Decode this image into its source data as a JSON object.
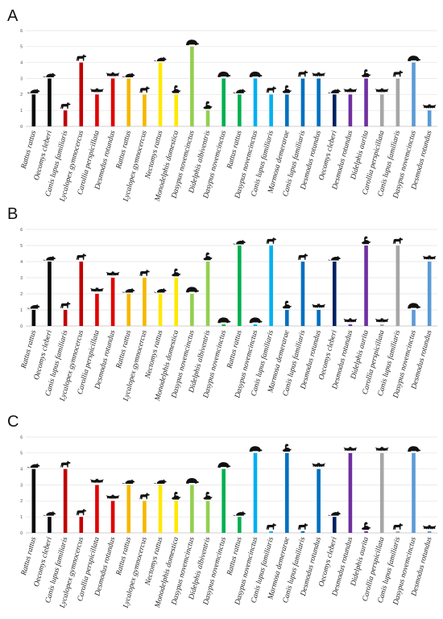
{
  "figure": {
    "panel_labels": [
      "A",
      "B",
      "C"
    ]
  },
  "chart_data": [
    {
      "type": "bar",
      "panel": "A",
      "ylim": [
        0,
        6
      ],
      "yticks": [
        "0",
        "1",
        "2",
        "3",
        "4",
        "5",
        "6"
      ],
      "grid": true,
      "categories": [
        "Rattus rattus",
        "Oecomys cleberi",
        "Canis lupus familiaris",
        "Lycalopex gymnocercus",
        "Carollia perspicillata",
        "Desmodus rotundus",
        "Rattus rattus",
        "Lycalopex gymnocercus",
        "Nectomys rattus",
        "Monodelphis domestica",
        "Dasypus novemcinctus",
        "Didelphis albiventris",
        "Dasypus novemcinctus",
        "Rattus rattus",
        "Dasypus novemcinctus",
        "Canis lupus familiaris",
        "Marmosa demerarae",
        "Canis lupus familiaris",
        "Desmodus rotundus",
        "Oecomys cleberi",
        "Desmodus rotundus",
        "Didelphis aurita",
        "Carollia perspicillata",
        "Canis lupus familiaris",
        "Dasypus novemcinctus",
        "Desmodus rotundus"
      ],
      "values": [
        2,
        3,
        1,
        4,
        2,
        3,
        3,
        2,
        4,
        2,
        5,
        1,
        3,
        2,
        3,
        2,
        2,
        3,
        3,
        2,
        2,
        3,
        2,
        3,
        4,
        1
      ],
      "colors": [
        "#0a0a0a",
        "#0a0a0a",
        "#c00000",
        "#c00000",
        "#e00000",
        "#e00000",
        "#f5b800",
        "#f5b800",
        "#ffe800",
        "#ffe800",
        "#92d050",
        "#92d050",
        "#00b050",
        "#00b050",
        "#00b0f0",
        "#00b0f0",
        "#0070c0",
        "#0070c0",
        "#0070c0",
        "#002060",
        "#7030a0",
        "#7030a0",
        "#a6a6a6",
        "#a6a6a6",
        "#5b9bd5",
        "#5b9bd5"
      ],
      "icons": [
        "rat-icon",
        "rat-icon",
        "dog-icon",
        "dog-icon",
        "bat-icon",
        "bat-icon",
        "rat-icon",
        "dog-icon",
        "rat-icon",
        "opossum-icon",
        "armadillo-icon",
        "opossum-icon",
        "armadillo-icon",
        "rat-icon",
        "armadillo-icon",
        "dog-icon",
        "opossum-icon",
        "dog-icon",
        "bat-icon",
        "rat-icon",
        "bat-icon",
        "opossum-icon",
        "bat-icon",
        "dog-icon",
        "armadillo-icon",
        "bat-icon"
      ]
    },
    {
      "type": "bar",
      "panel": "B",
      "ylim": [
        0,
        6
      ],
      "yticks": [
        "0",
        "1",
        "2",
        "3",
        "4",
        "5",
        "6"
      ],
      "grid": true,
      "categories": [
        "Rattus rattus",
        "Oecomys cleberi",
        "Canis lupus familiaris",
        "Lycalopex gymnocercus",
        "Carollia perspicillata",
        "Desmodus rotundus",
        "Rattus rattus",
        "Lycalopex gymnocercus",
        "Nectomys rattus",
        "Monodelphis domestica",
        "Dasypus novemcinctus",
        "Didelphis albiventris",
        "Dasypus novemcinctus",
        "Rattus rattus",
        "Dasypus novemcinctus",
        "Canis lupus familiaris",
        "Marmosa demerarae",
        "Canis lupus familiaris",
        "Desmodus rotundus",
        "Oecomys cleberi",
        "Desmodus rotundus",
        "Didelphis aurita",
        "Carollia perspicillata",
        "Canis lupus familiaris",
        "Dasypus novemcinctus",
        "Desmodus rotundus"
      ],
      "values": [
        1,
        4,
        1,
        4,
        2,
        3,
        2,
        3,
        2,
        3,
        2,
        4,
        0.1,
        5,
        0.1,
        5,
        1,
        4,
        1,
        4,
        0.1,
        5,
        0.1,
        5,
        1,
        4
      ],
      "colors": [
        "#0a0a0a",
        "#0a0a0a",
        "#c00000",
        "#c00000",
        "#e00000",
        "#e00000",
        "#f5b800",
        "#f5b800",
        "#ffe800",
        "#ffe800",
        "#92d050",
        "#92d050",
        "#00b050",
        "#00b050",
        "#00b0f0",
        "#00b0f0",
        "#0070c0",
        "#0070c0",
        "#0070c0",
        "#002060",
        "#7030a0",
        "#7030a0",
        "#a6a6a6",
        "#a6a6a6",
        "#5b9bd5",
        "#5b9bd5"
      ],
      "icons": [
        "rat-icon",
        "rat-icon",
        "dog-icon",
        "dog-icon",
        "bat-icon",
        "bat-icon",
        "rat-icon",
        "dog-icon",
        "rat-icon",
        "opossum-icon",
        "armadillo-icon",
        "opossum-icon",
        "armadillo-icon",
        "rat-icon",
        "armadillo-icon",
        "dog-icon",
        "opossum-icon",
        "dog-icon",
        "bat-icon",
        "rat-icon",
        "bat-icon",
        "opossum-icon",
        "bat-icon",
        "dog-icon",
        "armadillo-icon",
        "bat-icon"
      ]
    },
    {
      "type": "bar",
      "panel": "C",
      "ylim": [
        0,
        6
      ],
      "yticks": [
        "0",
        "1",
        "2",
        "3",
        "4",
        "5",
        "6"
      ],
      "grid": true,
      "categories": [
        "Rattus rattus",
        "Oecomys cleberi",
        "Canis lupus familiaris",
        "Lycalopex gymnocercus",
        "Carollia perspicillata",
        "Desmodus rotundus",
        "Rattus rattus",
        "Lycalopex gymnocercus",
        "Nectomys rattus",
        "Monodelphis domestica",
        "Dasypus novemcinctus",
        "Didelphis albiventris",
        "Dasypus novemcinctus",
        "Rattus rattus",
        "Dasypus novemcinctus",
        "Canis lupus familiaris",
        "Marmosa demerarae",
        "Canis lupus familiaris",
        "Desmodus rotundus",
        "Oecomys cleberi",
        "Desmodus rotundus",
        "Didelphis aurita",
        "Carollia perspicillata",
        "Canis lupus familiaris",
        "Dasypus novemcinctus",
        "Desmodus rotundus"
      ],
      "values": [
        4,
        1,
        4,
        1,
        3,
        2,
        3,
        2,
        3,
        2,
        3,
        2,
        4,
        1,
        5,
        0.1,
        5,
        0.1,
        4,
        1,
        5,
        0.1,
        5,
        0.1,
        5,
        0.1
      ],
      "colors": [
        "#0a0a0a",
        "#0a0a0a",
        "#c00000",
        "#c00000",
        "#e00000",
        "#e00000",
        "#f5b800",
        "#f5b800",
        "#ffe800",
        "#ffe800",
        "#92d050",
        "#92d050",
        "#00b050",
        "#00b050",
        "#00b0f0",
        "#00b0f0",
        "#0070c0",
        "#0070c0",
        "#0070c0",
        "#002060",
        "#7030a0",
        "#7030a0",
        "#a6a6a6",
        "#a6a6a6",
        "#5b9bd5",
        "#5b9bd5"
      ],
      "icons": [
        "rat-icon",
        "rat-icon",
        "dog-icon",
        "dog-icon",
        "bat-icon",
        "bat-icon",
        "rat-icon",
        "dog-icon",
        "rat-icon",
        "opossum-icon",
        "armadillo-icon",
        "opossum-icon",
        "armadillo-icon",
        "rat-icon",
        "armadillo-icon",
        "dog-icon",
        "opossum-icon",
        "dog-icon",
        "bat-icon",
        "rat-icon",
        "bat-icon",
        "opossum-icon",
        "bat-icon",
        "dog-icon",
        "armadillo-icon",
        "bat-icon"
      ]
    }
  ]
}
